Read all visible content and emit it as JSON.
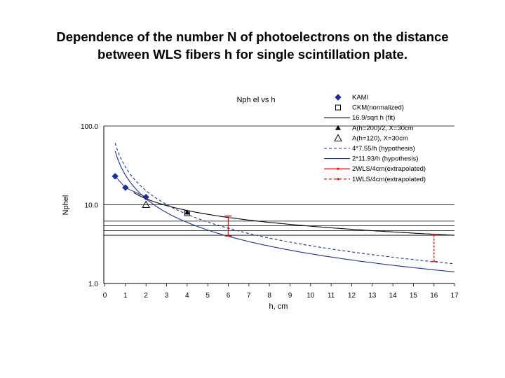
{
  "page": {
    "title_line1": "Dependence of the number N of photoelectrons on the distance",
    "title_line2": "between WLS fibers h for single scintillation plate."
  },
  "chart_data": {
    "type": "scatter",
    "title": "Nph el   vs   h",
    "xlabel": "h, cm",
    "ylabel": "Nphel",
    "x_ticks": [
      0,
      1,
      2,
      3,
      4,
      5,
      6,
      7,
      8,
      9,
      10,
      11,
      12,
      13,
      14,
      15,
      16,
      17
    ],
    "y_ticks": [
      1,
      10,
      100
    ],
    "y_tick_labels": [
      "1.0",
      "10.0",
      "100.0"
    ],
    "xlim": [
      -0.5,
      17
    ],
    "ylim": [
      1,
      100
    ],
    "y_scale": "log",
    "grid": "horizontal",
    "legend_position": "top-right",
    "colors": {
      "blue": "#1f2f9a",
      "black": "#000000",
      "red": "#d22020",
      "axis": "#000000",
      "grid": "#000000"
    },
    "series": [
      {
        "name": "KAMI",
        "kind": "markers",
        "marker": "diamond",
        "color": "#1f2f9a",
        "points": [
          [
            0.5,
            23
          ],
          [
            1,
            16.5
          ],
          [
            2,
            12.5
          ]
        ]
      },
      {
        "name": "CKM(normalized)",
        "kind": "markers",
        "marker": "open-square",
        "color": "#000000",
        "points": [
          [
            4,
            7.8
          ]
        ]
      },
      {
        "name": "16.9/sqrt h (fit)",
        "kind": "function",
        "formula": "16.9/sqrt(h)",
        "style": "solid",
        "color": "#000000",
        "range": [
          1.4,
          17
        ]
      },
      {
        "name": "A(h=200)/2,  X=30cm",
        "kind": "markers",
        "marker": "filled-triangle",
        "color": "#000000",
        "points": [
          [
            4,
            8.0
          ]
        ]
      },
      {
        "name": "A(h=120),   X=30cm",
        "kind": "markers",
        "marker": "open-triangle",
        "color": "#000000",
        "points": [
          [
            2,
            10
          ]
        ]
      },
      {
        "name": "4*7.55/h   (hypothesis)",
        "kind": "function",
        "formula": "30.2/h",
        "style": "dashed",
        "color": "#1f2f9a",
        "range": [
          0.5,
          17
        ]
      },
      {
        "name": "2*11.93/h (hypothesis)",
        "kind": "function",
        "formula": "23.86/h",
        "style": "solid",
        "color": "#1f2f9a",
        "range": [
          0.5,
          17
        ]
      },
      {
        "name": "2WLS/4cm(extrapolated)",
        "kind": "errorbar",
        "style": "solid",
        "color": "#d22020",
        "points": [
          [
            6,
            4.0,
            7.2
          ]
        ]
      },
      {
        "name": "1WLS/4cm(extrapolated)",
        "kind": "errorbar",
        "style": "dashed",
        "color": "#d22020",
        "points": [
          [
            16,
            1.9,
            4.2
          ]
        ]
      }
    ],
    "reference_lines_y": [
      6.2,
      5.4,
      4.7,
      4.1
    ]
  }
}
